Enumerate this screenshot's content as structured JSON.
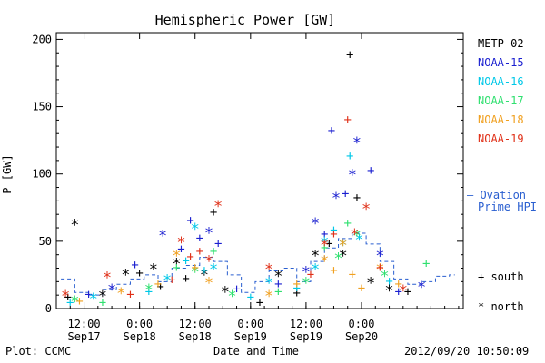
{
  "chart_data": {
    "type": "scatter",
    "title": "Hemispheric Power [GW]",
    "ylabel": "P [GW]",
    "xlabel": "Date and Time",
    "ylim": [
      0,
      205
    ],
    "xlim": [
      "2012-09-17 06:00",
      "2012-09-20 22:00"
    ],
    "yticks": [
      0,
      50,
      100,
      150,
      200
    ],
    "xticks": [
      {
        "at": "2012-09-17 12:00",
        "line1": "12:00",
        "line2": "Sep17"
      },
      {
        "at": "2012-09-18 00:00",
        "line1": "0:00",
        "line2": "Sep18"
      },
      {
        "at": "2012-09-18 12:00",
        "line1": "12:00",
        "line2": "Sep18"
      },
      {
        "at": "2012-09-19 00:00",
        "line1": "0:00",
        "line2": "Sep19"
      },
      {
        "at": "2012-09-19 12:00",
        "line1": "12:00",
        "line2": "Sep19"
      },
      {
        "at": "2012-09-20 00:00",
        "line1": "0:00",
        "line2": "Sep20"
      }
    ],
    "series": [
      {
        "name": "METP-02",
        "color": "#000000",
        "points": [
          [
            "2012-09-17 08:30",
            8,
            "+"
          ],
          [
            "2012-09-17 10:00",
            63,
            "*"
          ],
          [
            "2012-09-17 16:00",
            10,
            "*"
          ],
          [
            "2012-09-17 21:00",
            26,
            "*"
          ],
          [
            "2012-09-18 00:00",
            26,
            "+"
          ],
          [
            "2012-09-18 03:00",
            30,
            "*"
          ],
          [
            "2012-09-18 04:30",
            16,
            "+"
          ],
          [
            "2012-09-18 08:00",
            34,
            "*"
          ],
          [
            "2012-09-18 10:00",
            22,
            "+"
          ],
          [
            "2012-09-18 14:00",
            26,
            "*"
          ],
          [
            "2012-09-18 16:00",
            71,
            "+"
          ],
          [
            "2012-09-18 18:30",
            13,
            "*"
          ],
          [
            "2012-09-19 02:00",
            4,
            "+"
          ],
          [
            "2012-09-19 06:00",
            25,
            "*"
          ],
          [
            "2012-09-19 10:00",
            11,
            "+"
          ],
          [
            "2012-09-19 14:00",
            40,
            "*"
          ],
          [
            "2012-09-19 17:00",
            48,
            "+"
          ],
          [
            "2012-09-19 20:00",
            40,
            "*"
          ],
          [
            "2012-09-19 21:30",
            188,
            "+"
          ],
          [
            "2012-09-19 23:00",
            82,
            "+"
          ],
          [
            "2012-09-20 02:00",
            20,
            "*"
          ],
          [
            "2012-09-20 06:00",
            14,
            "*"
          ],
          [
            "2012-09-20 10:00",
            12,
            "+"
          ]
        ]
      },
      {
        "name": "NOAA-15",
        "color": "#1a1fd0",
        "points": [
          [
            "2012-09-17 13:00",
            10,
            "+"
          ],
          [
            "2012-09-17 18:00",
            15,
            "*"
          ],
          [
            "2012-09-17 23:00",
            32,
            "+"
          ],
          [
            "2012-09-18 05:00",
            55,
            "*"
          ],
          [
            "2012-09-18 09:00",
            44,
            "+"
          ],
          [
            "2012-09-18 11:00",
            65,
            "+"
          ],
          [
            "2012-09-18 13:00",
            52,
            "+"
          ],
          [
            "2012-09-18 15:00",
            57,
            "*"
          ],
          [
            "2012-09-18 17:00",
            48,
            "+"
          ],
          [
            "2012-09-18 21:00",
            14,
            "+"
          ],
          [
            "2012-09-19 06:00",
            18,
            "+"
          ],
          [
            "2012-09-19 12:00",
            28,
            "*"
          ],
          [
            "2012-09-19 14:00",
            64,
            "*"
          ],
          [
            "2012-09-19 16:00",
            55,
            "+"
          ],
          [
            "2012-09-19 17:30",
            132,
            "+"
          ],
          [
            "2012-09-19 18:30",
            83,
            "*"
          ],
          [
            "2012-09-19 20:30",
            85,
            "+"
          ],
          [
            "2012-09-19 22:00",
            100,
            "*"
          ],
          [
            "2012-09-19 23:00",
            124,
            "*"
          ],
          [
            "2012-09-20 02:00",
            102,
            "+"
          ],
          [
            "2012-09-20 04:00",
            40,
            "*"
          ],
          [
            "2012-09-20 08:00",
            12,
            "+"
          ],
          [
            "2012-09-20 13:00",
            17,
            "*"
          ]
        ]
      },
      {
        "name": "NOAA-16",
        "color": "#00c8e8",
        "points": [
          [
            "2012-09-17 09:00",
            4,
            "+"
          ],
          [
            "2012-09-17 14:00",
            8,
            "*"
          ],
          [
            "2012-09-18 02:00",
            12,
            "+"
          ],
          [
            "2012-09-18 06:00",
            22,
            "*"
          ],
          [
            "2012-09-18 10:00",
            35,
            "+"
          ],
          [
            "2012-09-18 12:00",
            60,
            "*"
          ],
          [
            "2012-09-18 14:00",
            28,
            "+"
          ],
          [
            "2012-09-18 16:00",
            30,
            "*"
          ],
          [
            "2012-09-19 00:00",
            8,
            "+"
          ],
          [
            "2012-09-19 04:00",
            20,
            "*"
          ],
          [
            "2012-09-19 10:00",
            15,
            "+"
          ],
          [
            "2012-09-19 14:00",
            30,
            "*"
          ],
          [
            "2012-09-19 16:00",
            50,
            "*"
          ],
          [
            "2012-09-19 18:00",
            58,
            "+"
          ],
          [
            "2012-09-19 20:00",
            48,
            "*"
          ],
          [
            "2012-09-19 21:30",
            113,
            "+"
          ],
          [
            "2012-09-19 23:30",
            52,
            "*"
          ],
          [
            "2012-09-20 06:00",
            20,
            "+"
          ]
        ]
      },
      {
        "name": "NOAA-17",
        "color": "#30e070",
        "points": [
          [
            "2012-09-17 10:00",
            6,
            "*"
          ],
          [
            "2012-09-17 16:00",
            4,
            "+"
          ],
          [
            "2012-09-18 02:00",
            15,
            "*"
          ],
          [
            "2012-09-18 08:00",
            30,
            "+"
          ],
          [
            "2012-09-18 12:00",
            28,
            "*"
          ],
          [
            "2012-09-18 16:00",
            42,
            "+"
          ],
          [
            "2012-09-18 20:00",
            10,
            "*"
          ],
          [
            "2012-09-19 06:00",
            12,
            "+"
          ],
          [
            "2012-09-19 12:00",
            20,
            "*"
          ],
          [
            "2012-09-19 16:00",
            45,
            "+"
          ],
          [
            "2012-09-19 19:00",
            38,
            "*"
          ],
          [
            "2012-09-19 21:00",
            63,
            "+"
          ],
          [
            "2012-09-19 23:00",
            55,
            "*"
          ],
          [
            "2012-09-20 05:00",
            25,
            "*"
          ],
          [
            "2012-09-20 14:00",
            33,
            "+"
          ]
        ]
      },
      {
        "name": "NOAA-18",
        "color": "#f0a020",
        "points": [
          [
            "2012-09-17 11:00",
            5,
            "+"
          ],
          [
            "2012-09-17 20:00",
            12,
            "*"
          ],
          [
            "2012-09-18 04:00",
            18,
            "+"
          ],
          [
            "2012-09-18 08:00",
            40,
            "*"
          ],
          [
            "2012-09-18 12:00",
            30,
            "+"
          ],
          [
            "2012-09-18 15:00",
            20,
            "*"
          ],
          [
            "2012-09-19 04:00",
            10,
            "*"
          ],
          [
            "2012-09-19 10:00",
            18,
            "+"
          ],
          [
            "2012-09-19 16:00",
            36,
            "*"
          ],
          [
            "2012-09-19 18:00",
            28,
            "+"
          ],
          [
            "2012-09-19 20:00",
            48,
            "*"
          ],
          [
            "2012-09-19 22:00",
            25,
            "+"
          ],
          [
            "2012-09-20 00:00",
            15,
            "+"
          ],
          [
            "2012-09-20 04:00",
            30,
            "*"
          ],
          [
            "2012-09-20 08:00",
            18,
            "+"
          ]
        ]
      },
      {
        "name": "NOAA-19",
        "color": "#e03018",
        "points": [
          [
            "2012-09-17 08:00",
            10,
            "*"
          ],
          [
            "2012-09-17 17:00",
            24,
            "*"
          ],
          [
            "2012-09-17 22:00",
            10,
            "+"
          ],
          [
            "2012-09-18 07:00",
            21,
            "+"
          ],
          [
            "2012-09-18 09:00",
            50,
            "*"
          ],
          [
            "2012-09-18 11:00",
            38,
            "+"
          ],
          [
            "2012-09-18 13:00",
            42,
            "+"
          ],
          [
            "2012-09-18 15:00",
            36,
            "*"
          ],
          [
            "2012-09-18 17:00",
            77,
            "*"
          ],
          [
            "2012-09-19 04:00",
            30,
            "*"
          ],
          [
            "2012-09-19 13:00",
            25,
            "+"
          ],
          [
            "2012-09-19 16:00",
            48,
            "*"
          ],
          [
            "2012-09-19 18:00",
            55,
            "+"
          ],
          [
            "2012-09-19 21:00",
            140,
            "+"
          ],
          [
            "2012-09-19 22:30",
            56,
            "*"
          ],
          [
            "2012-09-20 01:00",
            75,
            "*"
          ],
          [
            "2012-09-20 04:00",
            30,
            "+"
          ],
          [
            "2012-09-20 09:00",
            14,
            "*"
          ]
        ]
      }
    ],
    "ovation": {
      "name": "Ovation Prime HPI",
      "color": "#2a5fd0",
      "values": [
        [
          "2012-09-17 07:00",
          22
        ],
        [
          "2012-09-17 10:00",
          12
        ],
        [
          "2012-09-17 13:00",
          10
        ],
        [
          "2012-09-17 16:00",
          14
        ],
        [
          "2012-09-17 19:00",
          18
        ],
        [
          "2012-09-17 22:00",
          22
        ],
        [
          "2012-09-18 01:00",
          25
        ],
        [
          "2012-09-18 04:00",
          20
        ],
        [
          "2012-09-18 07:00",
          30
        ],
        [
          "2012-09-18 10:00",
          32
        ],
        [
          "2012-09-18 13:00",
          38
        ],
        [
          "2012-09-18 16:00",
          35
        ],
        [
          "2012-09-18 19:00",
          25
        ],
        [
          "2012-09-18 22:00",
          12
        ],
        [
          "2012-09-19 01:00",
          20
        ],
        [
          "2012-09-19 04:00",
          28
        ],
        [
          "2012-09-19 07:00",
          30
        ],
        [
          "2012-09-19 10:00",
          20
        ],
        [
          "2012-09-19 13:00",
          35
        ],
        [
          "2012-09-19 16:00",
          45
        ],
        [
          "2012-09-19 19:00",
          52
        ],
        [
          "2012-09-19 22:00",
          56
        ],
        [
          "2012-09-20 01:00",
          48
        ],
        [
          "2012-09-20 04:00",
          35
        ],
        [
          "2012-09-20 07:00",
          22
        ],
        [
          "2012-09-20 10:00",
          18
        ],
        [
          "2012-09-20 13:00",
          20
        ],
        [
          "2012-09-20 16:00",
          24
        ],
        [
          "2012-09-20 19:00",
          25
        ]
      ]
    },
    "legend": {
      "position": "right",
      "ovation_label_line1": "— Ovation",
      "ovation_label_line2": "Prime HPI",
      "south_label": "+ south",
      "north_label": "* north"
    },
    "grid": false
  },
  "footer": {
    "left": "Plot: CCMC",
    "center": "Date and Time",
    "right": "2012/09/20 10:50:09"
  }
}
